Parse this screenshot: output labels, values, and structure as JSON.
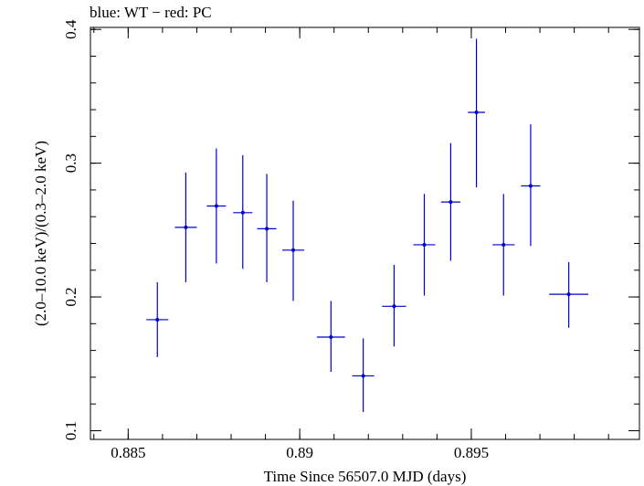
{
  "chart_data": {
    "type": "scatter",
    "title": "blue: WT − red: PC",
    "xlabel": "Time Since 56507.0 MJD (days)",
    "ylabel": "(2.0–10.0 keV)/(0.3–2.0 keV)",
    "xlim": [
      0.8839,
      0.8999
    ],
    "ylim": [
      0.0935,
      0.4015
    ],
    "x_ticks": [
      "0.885",
      "0.89",
      "0.895"
    ],
    "x_tick_values": [
      0.885,
      0.89,
      0.895
    ],
    "y_ticks": [
      "0.1",
      "0.2",
      "0.3",
      "0.4"
    ],
    "y_tick_values": [
      0.1,
      0.2,
      0.3,
      0.4
    ],
    "series": [
      {
        "name": "WT",
        "color": "#0000cc",
        "points": [
          {
            "x": 0.88585,
            "xerr": 0.00032,
            "y": 0.183,
            "ylo": 0.155,
            "yhi": 0.211
          },
          {
            "x": 0.88668,
            "xerr": 0.00032,
            "y": 0.252,
            "ylo": 0.211,
            "yhi": 0.293
          },
          {
            "x": 0.88757,
            "xerr": 0.00028,
            "y": 0.268,
            "ylo": 0.225,
            "yhi": 0.311
          },
          {
            "x": 0.88834,
            "xerr": 0.00028,
            "y": 0.263,
            "ylo": 0.221,
            "yhi": 0.306
          },
          {
            "x": 0.88904,
            "xerr": 0.00028,
            "y": 0.251,
            "ylo": 0.211,
            "yhi": 0.292
          },
          {
            "x": 0.88981,
            "xerr": 0.00032,
            "y": 0.235,
            "ylo": 0.197,
            "yhi": 0.272
          },
          {
            "x": 0.89091,
            "xerr": 0.00041,
            "y": 0.17,
            "ylo": 0.144,
            "yhi": 0.197
          },
          {
            "x": 0.89185,
            "xerr": 0.00032,
            "y": 0.141,
            "ylo": 0.114,
            "yhi": 0.169
          },
          {
            "x": 0.89275,
            "xerr": 0.00035,
            "y": 0.193,
            "ylo": 0.163,
            "yhi": 0.224
          },
          {
            "x": 0.89363,
            "xerr": 0.00032,
            "y": 0.239,
            "ylo": 0.201,
            "yhi": 0.277
          },
          {
            "x": 0.8944,
            "xerr": 0.00028,
            "y": 0.271,
            "ylo": 0.227,
            "yhi": 0.315
          },
          {
            "x": 0.89515,
            "xerr": 0.00025,
            "y": 0.338,
            "ylo": 0.282,
            "yhi": 0.393
          },
          {
            "x": 0.89594,
            "xerr": 0.00032,
            "y": 0.239,
            "ylo": 0.201,
            "yhi": 0.277
          },
          {
            "x": 0.89673,
            "xerr": 0.00028,
            "y": 0.283,
            "ylo": 0.238,
            "yhi": 0.329
          },
          {
            "x": 0.89784,
            "xerr": 0.00057,
            "y": 0.202,
            "ylo": 0.177,
            "yhi": 0.226
          }
        ]
      }
    ],
    "grid": false,
    "legend": "none"
  }
}
